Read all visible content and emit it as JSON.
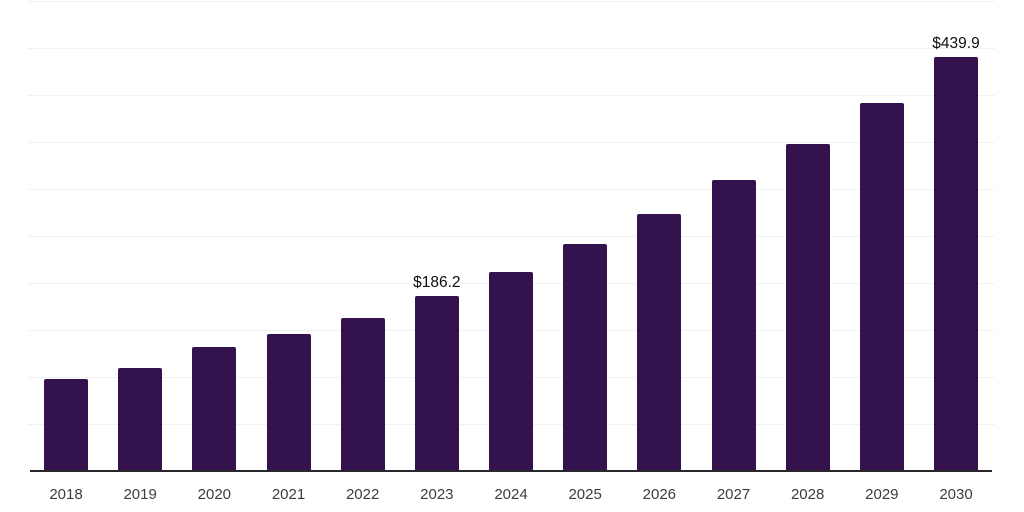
{
  "chart": {
    "bar_color": "#33124e",
    "axis_color": "#28282b",
    "gridline_color": "#f1f1f1",
    "data_label_color": "#0e0e0e",
    "tick_label_color": "#3d3d3d",
    "background_color": "#ffffff"
  },
  "chart_data": {
    "type": "bar",
    "categories": [
      "2018",
      "2019",
      "2020",
      "2021",
      "2022",
      "2023",
      "2024",
      "2025",
      "2026",
      "2027",
      "2028",
      "2029",
      "2030"
    ],
    "values": [
      98,
      110,
      132,
      146,
      163,
      186.2,
      212,
      241,
      273,
      310,
      348,
      391,
      439.9
    ],
    "data_labels": {
      "2023": "$186.2",
      "2030": "$439.9"
    },
    "title": "",
    "xlabel": "",
    "ylabel": "",
    "ylim": [
      0,
      500
    ],
    "gridline_step": 50,
    "grid": "horizontal",
    "y_axis_tick_labels_visible": false,
    "legend": "none",
    "bar_color": "#33124e"
  }
}
